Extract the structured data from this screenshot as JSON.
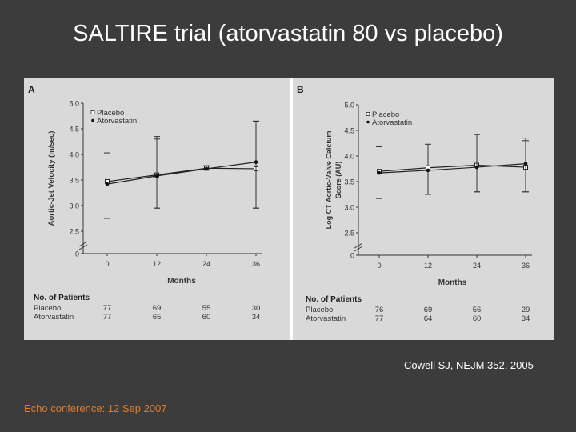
{
  "slide": {
    "title": "SALTIRE trial (atorvastatin 80 vs placebo)",
    "citation": "Cowell SJ, NEJM 352, 2005",
    "footer": "Echo conference: 12 Sep 2007"
  },
  "colors": {
    "background": "#3c3c3c",
    "panel": "#d9d9d9",
    "footer_text": "#e07b2a"
  },
  "chart_data": [
    {
      "type": "line",
      "panel_label": "A",
      "ylabel": "Aortic-Jet Velocity (m/sec)",
      "xlabel": "Months",
      "x": [
        0,
        12,
        24,
        36
      ],
      "x_ticks": [
        "0",
        "12",
        "24",
        "36"
      ],
      "y_ticks": [
        "0",
        "2.5",
        "3.0",
        "3.5",
        "4.0",
        "4.5",
        "5.0"
      ],
      "ylim": [
        2.5,
        5.0
      ],
      "axis_break": true,
      "legend_placement": "top-left",
      "series": [
        {
          "name": "Placebo",
          "marker": "open-square",
          "values": [
            3.47,
            3.6,
            3.73,
            3.72
          ],
          "err_low": [
            2.75,
            2.95,
            3.7,
            2.95
          ],
          "err_high": [
            4.03,
            4.3,
            3.78,
            4.65
          ]
        },
        {
          "name": "Atorvastatin",
          "marker": "filled-circle",
          "values": [
            3.42,
            3.58,
            3.72,
            3.85
          ],
          "err_low": [
            3.42,
            2.95,
            3.72,
            2.95
          ],
          "err_high": [
            3.42,
            4.35,
            3.72,
            4.65
          ]
        }
      ],
      "patients": {
        "heading": "No. of Patients",
        "rows": [
          {
            "name": "Placebo",
            "values": [
              "77",
              "69",
              "55",
              "30"
            ]
          },
          {
            "name": "Atorvastatin",
            "values": [
              "77",
              "65",
              "60",
              "34"
            ]
          }
        ]
      }
    },
    {
      "type": "line",
      "panel_label": "B",
      "ylabel": "Log CT Aortic-Valve Calcium Score (AU)",
      "xlabel": "Months",
      "x": [
        0,
        12,
        24,
        36
      ],
      "x_ticks": [
        "0",
        "12",
        "24",
        "36"
      ],
      "y_ticks": [
        "0",
        "2.5",
        "3.0",
        "3.5",
        "4.0",
        "4.5",
        "5.0"
      ],
      "ylim": [
        2.5,
        5.0
      ],
      "axis_break": true,
      "legend_placement": "top-left",
      "series": [
        {
          "name": "Placebo",
          "marker": "open-square",
          "values": [
            3.7,
            3.77,
            3.82,
            3.78
          ],
          "err_low": [
            3.17,
            3.25,
            3.3,
            3.3
          ],
          "err_high": [
            4.18,
            4.23,
            4.42,
            4.3
          ]
        },
        {
          "name": "Atorvastatin",
          "marker": "filled-circle",
          "values": [
            3.67,
            3.72,
            3.78,
            3.85
          ],
          "err_low": [
            3.67,
            3.72,
            3.3,
            3.3
          ],
          "err_high": [
            3.67,
            3.72,
            4.42,
            4.35
          ]
        }
      ],
      "patients": {
        "heading": "No. of Patients",
        "rows": [
          {
            "name": "Placebo",
            "values": [
              "76",
              "69",
              "56",
              "29"
            ]
          },
          {
            "name": "Atorvastatin",
            "values": [
              "77",
              "64",
              "60",
              "34"
            ]
          }
        ]
      }
    }
  ]
}
